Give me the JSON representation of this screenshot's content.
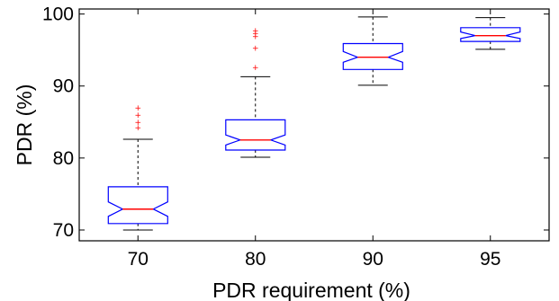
{
  "chart_data": {
    "type": "boxplot",
    "title": "",
    "xlabel": "PDR requirement (%)",
    "ylabel": "PDR (%)",
    "categories": [
      "70",
      "80",
      "90",
      "95"
    ],
    "yticks": [
      70,
      80,
      90,
      100
    ],
    "ylim": [
      68.5,
      100.7
    ],
    "grid": false,
    "notched": true,
    "boxes": [
      {
        "category": "70",
        "whisker_low": 70.0,
        "q1": 70.9,
        "median": 72.9,
        "q3": 76.0,
        "whisker_high": 82.6,
        "notch_low": 71.9,
        "notch_high": 73.9,
        "outliers": [
          84.2,
          85.0,
          86.0,
          87.0
        ]
      },
      {
        "category": "80",
        "whisker_low": 80.1,
        "q1": 81.1,
        "median": 82.5,
        "q3": 85.3,
        "whisker_high": 91.3,
        "notch_low": 81.8,
        "notch_high": 83.2,
        "outliers": [
          92.6,
          95.3,
          96.9,
          97.3,
          97.7
        ]
      },
      {
        "category": "90",
        "whisker_low": 90.1,
        "q1": 92.3,
        "median": 94.0,
        "q3": 95.9,
        "whisker_high": 99.6,
        "notch_low": 93.3,
        "notch_high": 94.8,
        "outliers": []
      },
      {
        "category": "95",
        "whisker_low": 95.1,
        "q1": 96.2,
        "median": 97.0,
        "q3": 98.1,
        "whisker_high": 99.5,
        "notch_low": 96.6,
        "notch_high": 97.5,
        "outliers": []
      }
    ],
    "colors": {
      "box": "#0000ff",
      "median": "#ff0000",
      "whisker": "#000000",
      "outlier": "#ff0000",
      "axes": "#000000"
    }
  }
}
